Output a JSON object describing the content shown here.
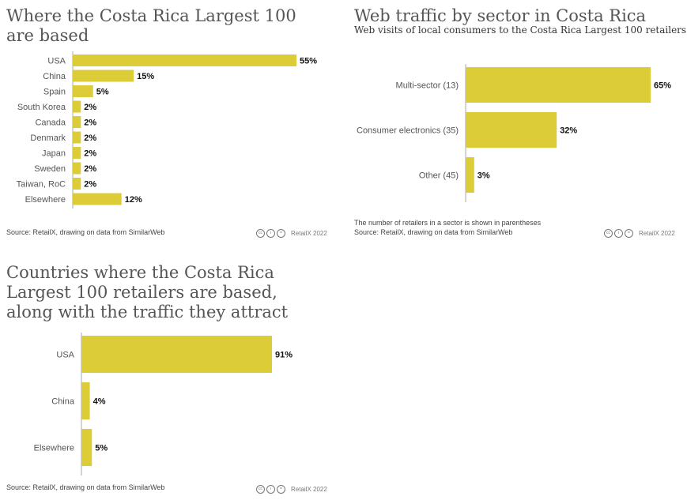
{
  "colors": {
    "bar": "#dccd38",
    "axis": "#aaaaaa"
  },
  "chart_data": [
    {
      "type": "bar",
      "orientation": "horizontal",
      "title": "Where the Costa Rica Largest 100 are based",
      "categories": [
        "USA",
        "China",
        "Spain",
        "South Korea",
        "Canada",
        "Denmark",
        "Japan",
        "Sweden",
        "Taiwan, RoC",
        "Elsewhere"
      ],
      "values": [
        55,
        15,
        5,
        2,
        2,
        2,
        2,
        2,
        2,
        12
      ],
      "value_labels": [
        "55%",
        "15%",
        "5%",
        "2%",
        "2%",
        "2%",
        "2%",
        "2%",
        "2%",
        "12%"
      ],
      "xlim": [
        0,
        55
      ],
      "source": "Source: RetailX, drawing on data from SimilarWeb",
      "credit": "RetailX 2022"
    },
    {
      "type": "bar",
      "orientation": "horizontal",
      "title": "Web traffic by sector in Costa Rica",
      "subtitle": "Web visits of local consumers to the Costa Rica Largest 100 retailers",
      "categories": [
        "Multi-sector (13)",
        "Consumer electronics (35)",
        "Other (45)"
      ],
      "values": [
        65,
        32,
        3
      ],
      "value_labels": [
        "65%",
        "32%",
        "3%"
      ],
      "xlim": [
        0,
        65
      ],
      "note": "The number of retailers in a sector is shown in parentheses",
      "source": "Source: RetailX, drawing on data from SimilarWeb",
      "credit": "RetailX 2022"
    },
    {
      "type": "bar",
      "orientation": "horizontal",
      "title": "Countries where the Costa Rica Largest 100 retailers are based, along with the traffic they attract",
      "categories": [
        "USA",
        "China",
        "Elsewhere"
      ],
      "values": [
        91,
        4,
        5
      ],
      "value_labels": [
        "91%",
        "4%",
        "5%"
      ],
      "xlim": [
        0,
        91
      ],
      "source": "Source: RetailX, drawing on data from SimilarWeb",
      "credit": "RetailX 2022"
    }
  ]
}
